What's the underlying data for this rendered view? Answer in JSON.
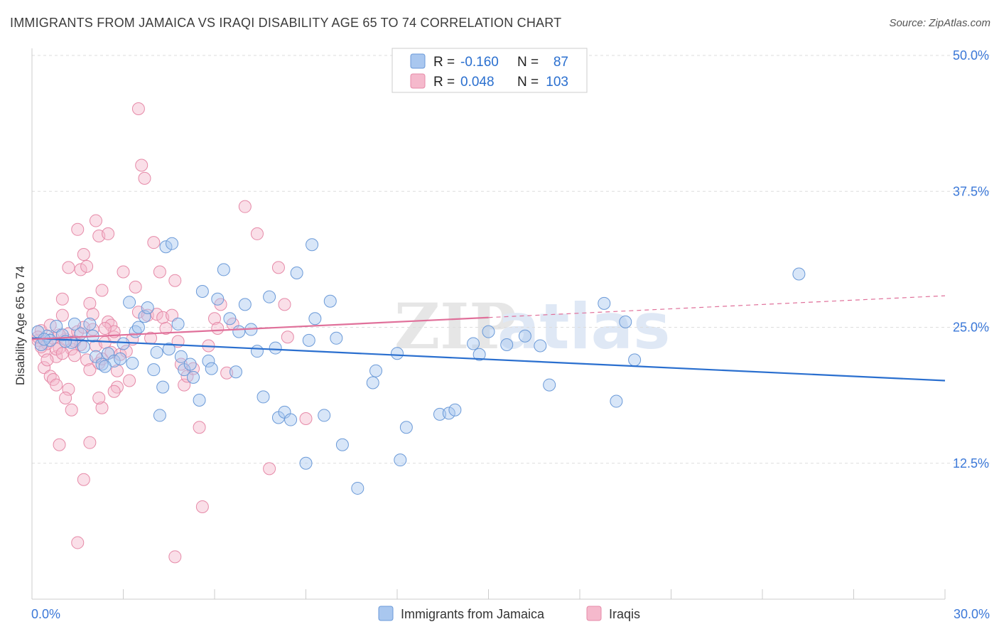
{
  "title": "IMMIGRANTS FROM JAMAICA VS IRAQI DISABILITY AGE 65 TO 74 CORRELATION CHART",
  "source": "Source: ZipAtlas.com",
  "watermark": {
    "zip": "ZIP",
    "atlas": "atlas"
  },
  "legend": {
    "rows": [
      {
        "r_label": "R =",
        "r_value": "-0.160",
        "n_label": "N =",
        "n_value": "87"
      },
      {
        "r_label": "R =",
        "r_value": "0.048",
        "n_label": "N =",
        "n_value": "103"
      }
    ]
  },
  "bottom_legend": {
    "items": [
      {
        "label": "Immigrants from Jamaica"
      },
      {
        "label": "Iraqis"
      }
    ]
  },
  "colors": {
    "blue_fill": "#a9c7ef",
    "blue_stroke": "#6b9ad8",
    "blue_line": "#2a6fcf",
    "pink_fill": "#f5b9cc",
    "pink_stroke": "#e68aa8",
    "pink_line": "#e0709a",
    "tick_label": "#3b78d8",
    "grid": "#dddddd"
  },
  "chart_data": {
    "type": "scatter",
    "title": "IMMIGRANTS FROM JAMAICA VS IRAQI DISABILITY AGE 65 TO 74 CORRELATION CHART",
    "xlabel": "",
    "ylabel": "Disability Age 65 to 74",
    "xlim": [
      0,
      30
    ],
    "ylim": [
      0,
      50
    ],
    "x_tick_labels": [
      "0.0%",
      "30.0%"
    ],
    "y_ticks": [
      12.5,
      25.0,
      37.5,
      50.0
    ],
    "y_tick_labels": [
      "12.5%",
      "25.0%",
      "37.5%",
      "50.0%"
    ],
    "grid": true,
    "legend_position": "top-center",
    "series": [
      {
        "name": "Immigrants from Jamaica",
        "r": -0.16,
        "n": 87,
        "trend": {
          "x0": 0,
          "y0": 24.0,
          "x1": 30,
          "y1": 20.1
        },
        "points": [
          [
            0.3,
            23.4
          ],
          [
            0.5,
            24.2
          ],
          [
            0.8,
            25.1
          ],
          [
            1.0,
            24.3
          ],
          [
            1.3,
            23.6
          ],
          [
            1.4,
            25.3
          ],
          [
            1.6,
            24.4
          ],
          [
            1.9,
            25.3
          ],
          [
            2.1,
            22.3
          ],
          [
            2.3,
            21.6
          ],
          [
            2.5,
            22.6
          ],
          [
            2.7,
            21.9
          ],
          [
            2.9,
            22.1
          ],
          [
            3.2,
            27.3
          ],
          [
            3.4,
            24.6
          ],
          [
            3.5,
            25.0
          ],
          [
            3.7,
            26.0
          ],
          [
            3.8,
            26.8
          ],
          [
            4.0,
            21.1
          ],
          [
            4.1,
            22.7
          ],
          [
            4.3,
            19.5
          ],
          [
            4.4,
            32.4
          ],
          [
            4.6,
            32.7
          ],
          [
            4.8,
            25.3
          ],
          [
            5.0,
            21.1
          ],
          [
            5.2,
            21.6
          ],
          [
            5.3,
            20.4
          ],
          [
            5.5,
            18.3
          ],
          [
            5.6,
            28.3
          ],
          [
            5.8,
            21.9
          ],
          [
            5.9,
            21.2
          ],
          [
            6.1,
            27.6
          ],
          [
            6.3,
            30.3
          ],
          [
            6.5,
            25.8
          ],
          [
            6.7,
            20.9
          ],
          [
            6.8,
            24.6
          ],
          [
            7.0,
            27.1
          ],
          [
            7.2,
            24.8
          ],
          [
            7.4,
            22.8
          ],
          [
            7.6,
            18.6
          ],
          [
            7.8,
            27.8
          ],
          [
            8.0,
            23.1
          ],
          [
            8.1,
            16.7
          ],
          [
            8.3,
            17.2
          ],
          [
            8.5,
            16.5
          ],
          [
            8.7,
            30.0
          ],
          [
            9.2,
            32.6
          ],
          [
            9.3,
            25.8
          ],
          [
            9.1,
            23.8
          ],
          [
            9.0,
            12.5
          ],
          [
            9.6,
            16.9
          ],
          [
            9.8,
            27.4
          ],
          [
            10.0,
            24.0
          ],
          [
            10.2,
            14.2
          ],
          [
            10.7,
            10.2
          ],
          [
            11.2,
            19.9
          ],
          [
            11.3,
            21.0
          ],
          [
            12.0,
            22.6
          ],
          [
            12.1,
            12.8
          ],
          [
            12.3,
            15.8
          ],
          [
            13.4,
            17.0
          ],
          [
            13.7,
            17.1
          ],
          [
            13.9,
            17.4
          ],
          [
            14.5,
            23.5
          ],
          [
            14.7,
            22.5
          ],
          [
            15.0,
            24.6
          ],
          [
            15.6,
            23.4
          ],
          [
            16.2,
            24.2
          ],
          [
            16.7,
            23.3
          ],
          [
            17.0,
            19.7
          ],
          [
            18.8,
            27.2
          ],
          [
            19.2,
            18.2
          ],
          [
            19.5,
            25.5
          ],
          [
            19.8,
            22.0
          ],
          [
            25.2,
            29.9
          ],
          [
            0.2,
            24.6
          ],
          [
            0.6,
            23.8
          ],
          [
            1.1,
            23.7
          ],
          [
            2.0,
            24.2
          ],
          [
            3.0,
            23.5
          ],
          [
            4.5,
            23.0
          ],
          [
            4.9,
            22.3
          ],
          [
            4.2,
            16.9
          ],
          [
            3.3,
            21.7
          ],
          [
            2.4,
            21.4
          ],
          [
            1.7,
            23.2
          ],
          [
            0.4,
            23.9
          ]
        ]
      },
      {
        "name": "Iraqis",
        "r": 0.048,
        "n": 103,
        "trend": {
          "x0": 0,
          "y0": 23.9,
          "x1": 15.0,
          "y1": 25.9
        },
        "trend_dashed": {
          "x0": 15.0,
          "y0": 25.9,
          "x1": 30,
          "y1": 27.9
        },
        "points": [
          [
            0.2,
            23.8
          ],
          [
            0.3,
            24.7
          ],
          [
            0.4,
            22.8
          ],
          [
            0.5,
            23.5
          ],
          [
            0.6,
            25.2
          ],
          [
            0.7,
            24.0
          ],
          [
            0.8,
            22.3
          ],
          [
            0.9,
            23.1
          ],
          [
            1.0,
            26.1
          ],
          [
            1.1,
            23.9
          ],
          [
            1.2,
            24.4
          ],
          [
            1.3,
            23.0
          ],
          [
            1.4,
            22.4
          ],
          [
            1.5,
            24.6
          ],
          [
            1.6,
            23.4
          ],
          [
            1.7,
            25.0
          ],
          [
            1.8,
            22.0
          ],
          [
            1.9,
            21.1
          ],
          [
            2.0,
            24.8
          ],
          [
            2.1,
            23.3
          ],
          [
            2.2,
            21.7
          ],
          [
            2.3,
            22.1
          ],
          [
            2.4,
            23.6
          ],
          [
            2.5,
            25.5
          ],
          [
            2.6,
            22.7
          ],
          [
            2.7,
            24.1
          ],
          [
            2.8,
            21.0
          ],
          [
            2.9,
            22.5
          ],
          [
            0.4,
            21.3
          ],
          [
            0.6,
            20.5
          ],
          [
            0.7,
            20.2
          ],
          [
            0.8,
            19.7
          ],
          [
            1.0,
            27.6
          ],
          [
            1.2,
            30.5
          ],
          [
            1.5,
            34.0
          ],
          [
            1.6,
            30.3
          ],
          [
            1.7,
            31.7
          ],
          [
            1.8,
            30.6
          ],
          [
            1.9,
            27.2
          ],
          [
            2.0,
            26.2
          ],
          [
            2.1,
            34.8
          ],
          [
            2.2,
            33.4
          ],
          [
            2.3,
            28.4
          ],
          [
            2.5,
            33.6
          ],
          [
            2.6,
            25.2
          ],
          [
            2.7,
            24.6
          ],
          [
            3.0,
            30.1
          ],
          [
            3.2,
            20.1
          ],
          [
            3.4,
            28.7
          ],
          [
            3.5,
            26.4
          ],
          [
            3.6,
            39.9
          ],
          [
            3.7,
            38.7
          ],
          [
            3.8,
            26.1
          ],
          [
            3.9,
            24.0
          ],
          [
            4.0,
            32.8
          ],
          [
            4.1,
            26.2
          ],
          [
            4.2,
            30.1
          ],
          [
            4.3,
            25.9
          ],
          [
            4.4,
            24.9
          ],
          [
            4.6,
            26.1
          ],
          [
            4.7,
            29.3
          ],
          [
            4.8,
            23.7
          ],
          [
            4.9,
            21.6
          ],
          [
            5.0,
            19.7
          ],
          [
            5.1,
            20.5
          ],
          [
            5.3,
            21.2
          ],
          [
            5.5,
            15.8
          ],
          [
            5.6,
            8.5
          ],
          [
            5.8,
            23.3
          ],
          [
            6.0,
            25.8
          ],
          [
            6.1,
            24.9
          ],
          [
            6.2,
            27.1
          ],
          [
            6.4,
            20.8
          ],
          [
            6.6,
            25.3
          ],
          [
            7.0,
            36.1
          ],
          [
            7.4,
            33.6
          ],
          [
            7.8,
            12.0
          ],
          [
            8.1,
            30.5
          ],
          [
            8.3,
            27.1
          ],
          [
            8.4,
            24.1
          ],
          [
            9.0,
            16.6
          ],
          [
            3.5,
            45.1
          ],
          [
            2.8,
            19.5
          ],
          [
            2.7,
            19.1
          ],
          [
            2.3,
            17.6
          ],
          [
            2.2,
            18.5
          ],
          [
            1.9,
            14.4
          ],
          [
            1.7,
            11.0
          ],
          [
            1.5,
            5.2
          ],
          [
            1.3,
            17.4
          ],
          [
            1.2,
            19.3
          ],
          [
            1.1,
            18.5
          ],
          [
            0.9,
            14.2
          ],
          [
            4.7,
            3.9
          ],
          [
            0.3,
            23.2
          ],
          [
            0.5,
            22.0
          ],
          [
            0.9,
            24.3
          ],
          [
            1.4,
            23.7
          ],
          [
            2.4,
            24.9
          ],
          [
            3.1,
            22.8
          ],
          [
            3.3,
            23.9
          ],
          [
            0.2,
            24.1
          ],
          [
            0.8,
            23.0
          ],
          [
            1.0,
            22.6
          ]
        ]
      }
    ]
  }
}
